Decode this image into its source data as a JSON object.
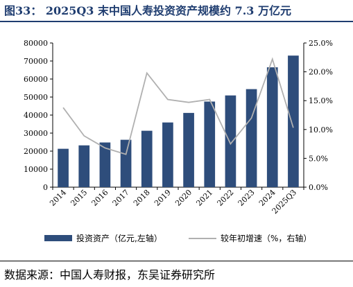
{
  "figure": {
    "title": "图33：  2025Q3 末中国人寿投资资产规模约 7.3 万亿元",
    "source": "数据来源：中国人寿财报，东吴证券研究所"
  },
  "chart_data": {
    "type": "bar+line",
    "categories": [
      "2014",
      "2015",
      "2016",
      "2017",
      "2018",
      "2019",
      "2020",
      "2021",
      "2022",
      "2023",
      "2024",
      "2025Q3"
    ],
    "series": [
      {
        "name": "投资资产（亿元,左轴）",
        "type": "bar",
        "axis": "left",
        "color": "#2e4d7b",
        "values": [
          21300,
          23200,
          24800,
          26300,
          31300,
          35900,
          41200,
          47500,
          50900,
          54400,
          66500,
          73000
        ]
      },
      {
        "name": "较年初增速（%，右轴）",
        "type": "line",
        "axis": "right",
        "color": "#b0b0b0",
        "values": [
          13.8,
          8.9,
          6.8,
          5.7,
          19.8,
          15.2,
          14.7,
          15.2,
          7.5,
          12.0,
          22.2,
          10.3
        ]
      }
    ],
    "y_left": {
      "ylim": [
        0,
        80000
      ],
      "ticks": [
        0,
        10000,
        20000,
        30000,
        40000,
        50000,
        60000,
        70000,
        80000
      ],
      "tick_labels": [
        "0",
        "10000",
        "20000",
        "30000",
        "40000",
        "50000",
        "60000",
        "70000",
        "80000"
      ]
    },
    "y_right": {
      "ylim": [
        0,
        25
      ],
      "ticks": [
        0,
        5,
        10,
        15,
        20,
        25
      ],
      "tick_labels": [
        "0.0%",
        "5.0%",
        "10.0%",
        "15.0%",
        "20.0%",
        "25.0%"
      ]
    },
    "grid": false,
    "legend": "bottom"
  }
}
